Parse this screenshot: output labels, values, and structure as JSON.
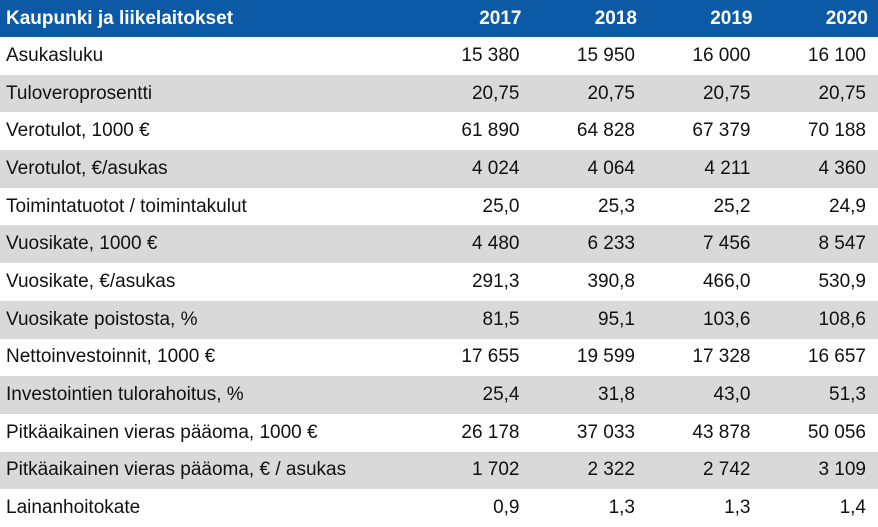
{
  "table": {
    "header": {
      "label": "Kaupunki ja liikelaitokset",
      "years": [
        "2017",
        "2018",
        "2019",
        "2020"
      ]
    },
    "rows": [
      {
        "label": "Asukasluku",
        "values": [
          "15 380",
          "15 950",
          "16 000",
          "16 100"
        ]
      },
      {
        "label": "Tuloveroprosentti",
        "values": [
          "20,75",
          "20,75",
          "20,75",
          "20,75"
        ]
      },
      {
        "label": "Verotulot, 1000 €",
        "values": [
          "61 890",
          "64 828",
          "67 379",
          "70 188"
        ]
      },
      {
        "label": "Verotulot, €/asukas",
        "values": [
          "4 024",
          "4 064",
          "4 211",
          "4 360"
        ]
      },
      {
        "label": "Toimintatuotot / toimintakulut",
        "values": [
          "25,0",
          "25,3",
          "25,2",
          "24,9"
        ]
      },
      {
        "label": "Vuosikate, 1000 €",
        "values": [
          "4 480",
          "6 233",
          "7 456",
          "8 547"
        ]
      },
      {
        "label": "Vuosikate, €/asukas",
        "values": [
          "291,3",
          "390,8",
          "466,0",
          "530,9"
        ]
      },
      {
        "label": "Vuosikate poistosta, %",
        "values": [
          "81,5",
          "95,1",
          "103,6",
          "108,6"
        ]
      },
      {
        "label": "Nettoinvestoinnit, 1000 €",
        "values": [
          "17 655",
          "19 599",
          "17 328",
          "16 657"
        ]
      },
      {
        "label": "Investointien tulorahoitus, %",
        "values": [
          "25,4",
          "31,8",
          "43,0",
          "51,3"
        ]
      },
      {
        "label": "Pitkäaikainen vieras pääoma, 1000 €",
        "values": [
          "26 178",
          "37 033",
          "43 878",
          "50 056"
        ]
      },
      {
        "label": "Pitkäaikainen vieras pääoma, € / asukas",
        "values": [
          "1 702",
          "2 322",
          "2 742",
          "3 109"
        ]
      },
      {
        "label": "Lainanhoitokate",
        "values": [
          "0,9",
          "1,3",
          "1,3",
          "1,4"
        ]
      }
    ]
  },
  "colors": {
    "header_bg": "#0c5aa6",
    "header_text": "#ffffff",
    "stripe": "#d9d9d9"
  }
}
